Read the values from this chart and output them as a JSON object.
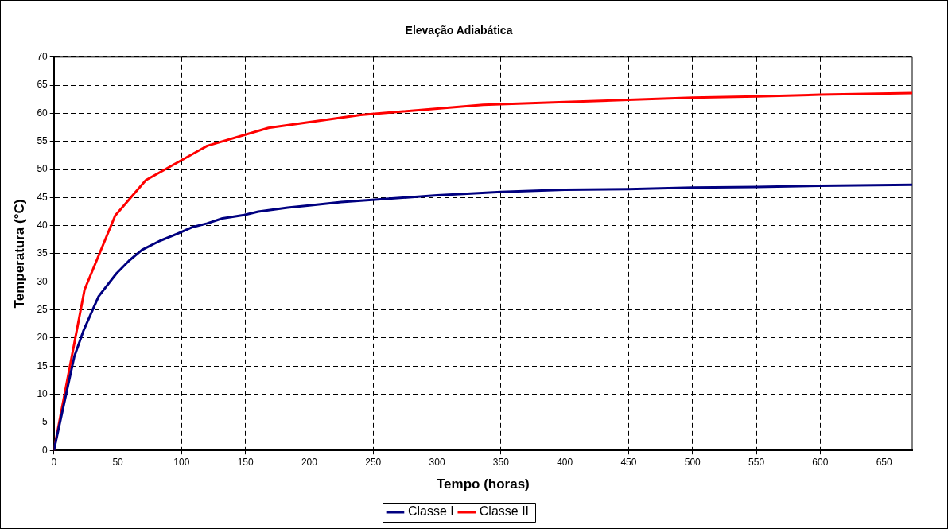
{
  "chart_data": {
    "type": "line",
    "title": "Elevação Adiabática",
    "xlabel": "Tempo (horas)",
    "ylabel": "Temperatura (°C)",
    "xlim": [
      0,
      672
    ],
    "xticks": [
      0,
      50,
      100,
      150,
      200,
      250,
      300,
      350,
      400,
      450,
      500,
      550,
      600,
      650
    ],
    "ylim": [
      0,
      70
    ],
    "yticks": [
      0,
      5,
      10,
      15,
      20,
      25,
      30,
      35,
      40,
      45,
      50,
      55,
      60,
      65,
      70
    ],
    "grid": true,
    "legend": "bottom",
    "series": [
      {
        "name": "Classe I",
        "color": "#000080",
        "x": [
          0,
          16,
          23,
          35,
          49,
          59,
          69,
          83,
          97,
          108,
          120,
          132,
          149,
          160,
          183,
          200,
          225,
          300,
          350,
          400,
          450,
          500,
          550,
          600,
          672
        ],
        "values": [
          0,
          16.7,
          21.2,
          27.4,
          31.5,
          33.8,
          35.7,
          37.3,
          38.6,
          39.7,
          40.4,
          41.3,
          41.9,
          42.5,
          43.2,
          43.6,
          44.2,
          45.4,
          46.0,
          46.4,
          46.5,
          46.8,
          46.9,
          47.1,
          47.3
        ]
      },
      {
        "name": "Classe II",
        "color": "#ff0000",
        "x": [
          0,
          24,
          48,
          72,
          120,
          168,
          240,
          336,
          400,
          450,
          500,
          550,
          600,
          672
        ],
        "values": [
          0,
          28.6,
          41.8,
          48.1,
          54.2,
          57.4,
          59.7,
          61.5,
          62.0,
          62.4,
          62.8,
          63.0,
          63.3,
          63.6
        ]
      }
    ]
  }
}
